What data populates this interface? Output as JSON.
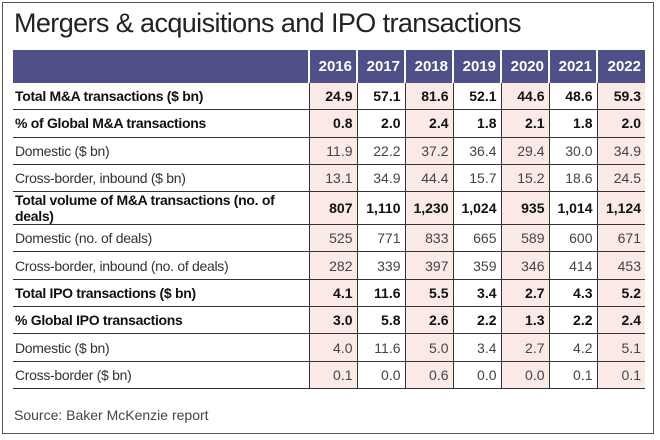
{
  "title": "Mergers & acquisitions and IPO transactions",
  "columns": [
    "2016",
    "2017",
    "2018",
    "2019",
    "2020",
    "2021",
    "2022"
  ],
  "rows": [
    {
      "label": "Total M&A transactions ($ bn)",
      "bold": true,
      "values": [
        "24.9",
        "57.1",
        "81.6",
        "52.1",
        "44.6",
        "48.6",
        "59.3"
      ]
    },
    {
      "label": "% of Global M&A transactions",
      "bold": true,
      "values": [
        "0.8",
        "2.0",
        "2.4",
        "1.8",
        "2.1",
        "1.8",
        "2.0"
      ]
    },
    {
      "label": "Domestic ($ bn)",
      "bold": false,
      "values": [
        "11.9",
        "22.2",
        "37.2",
        "36.4",
        "29.4",
        "30.0",
        "34.9"
      ]
    },
    {
      "label": "Cross-border, inbound ($ bn)",
      "bold": false,
      "values": [
        "13.1",
        "34.9",
        "44.4",
        "15.7",
        "15.2",
        "18.6",
        "24.5"
      ]
    },
    {
      "label": "Total volume of M&A transactions (no. of deals)",
      "bold": true,
      "values": [
        "807",
        "1,110",
        "1,230",
        "1,024",
        "935",
        "1,014",
        "1,124"
      ]
    },
    {
      "label": "Domestic (no. of deals)",
      "bold": false,
      "values": [
        "525",
        "771",
        "833",
        "665",
        "589",
        "600",
        "671"
      ]
    },
    {
      "label": "Cross-border, inbound (no. of deals)",
      "bold": false,
      "values": [
        "282",
        "339",
        "397",
        "359",
        "346",
        "414",
        "453"
      ]
    },
    {
      "label": "Total IPO transactions ($ bn)",
      "bold": true,
      "values": [
        "4.1",
        "11.6",
        "5.5",
        "3.4",
        "2.7",
        "4.3",
        "5.2"
      ]
    },
    {
      "label": "% Global IPO transactions",
      "bold": true,
      "values": [
        "3.0",
        "5.8",
        "2.6",
        "2.2",
        "1.3",
        "2.2",
        "2.4"
      ]
    },
    {
      "label": "Domestic ($ bn)",
      "bold": false,
      "values": [
        "4.0",
        "11.6",
        "5.0",
        "3.4",
        "2.7",
        "4.2",
        "5.1"
      ]
    },
    {
      "label": "Cross-border ($ bn)",
      "bold": false,
      "values": [
        "0.1",
        "0.0",
        "0.6",
        "0.0",
        "0.0",
        "0.1",
        "0.1"
      ]
    }
  ],
  "source": "Source: Baker McKenzie report",
  "colors": {
    "header": "#4f5087",
    "shade": "#fbe9e7"
  }
}
